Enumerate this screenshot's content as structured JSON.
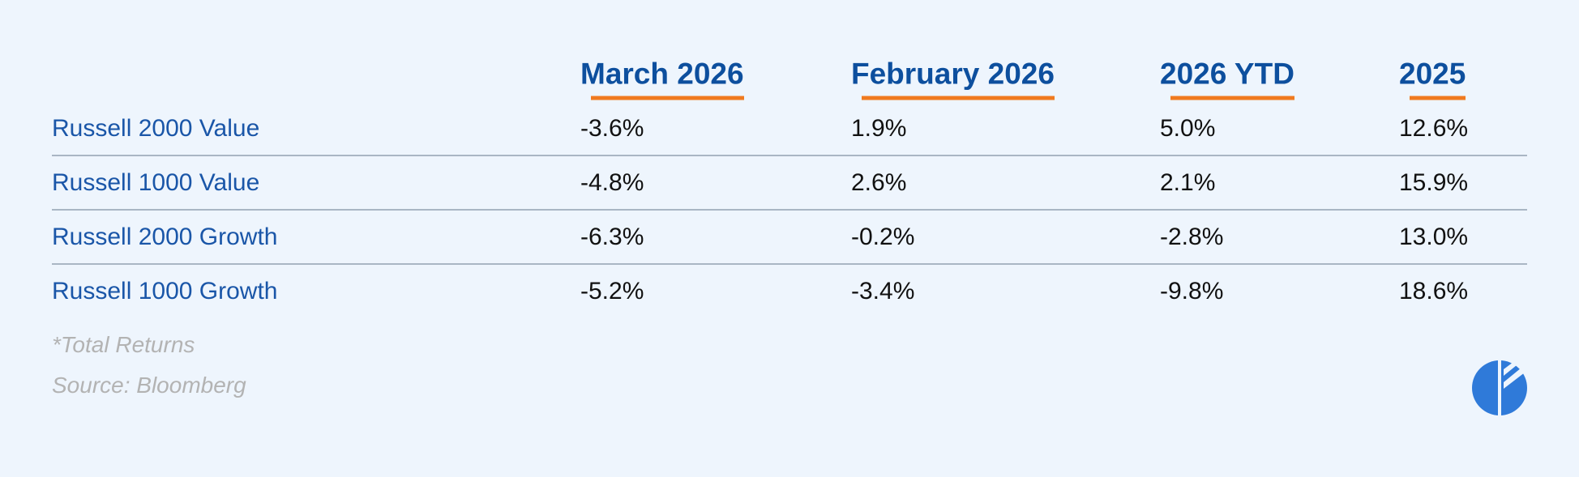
{
  "table": {
    "columns": [
      "March 2026",
      "February 2026",
      "2026 YTD",
      "2025"
    ],
    "rows": [
      {
        "label": "Russell 2000 Value",
        "cells": [
          "-3.6%",
          "1.9%",
          "5.0%",
          "12.6%"
        ]
      },
      {
        "label": "Russell 1000 Value",
        "cells": [
          "-4.8%",
          "2.6%",
          "2.1%",
          "15.9%"
        ]
      },
      {
        "label": "Russell 2000 Growth",
        "cells": [
          "-6.3%",
          "-0.2%",
          "-2.8%",
          "13.0%"
        ]
      },
      {
        "label": "Russell 1000 Growth",
        "cells": [
          "-5.2%",
          "-3.4%",
          "-9.8%",
          "18.6%"
        ]
      }
    ]
  },
  "footnotes": [
    "*Total Returns",
    "Source: Bloomberg"
  ]
}
